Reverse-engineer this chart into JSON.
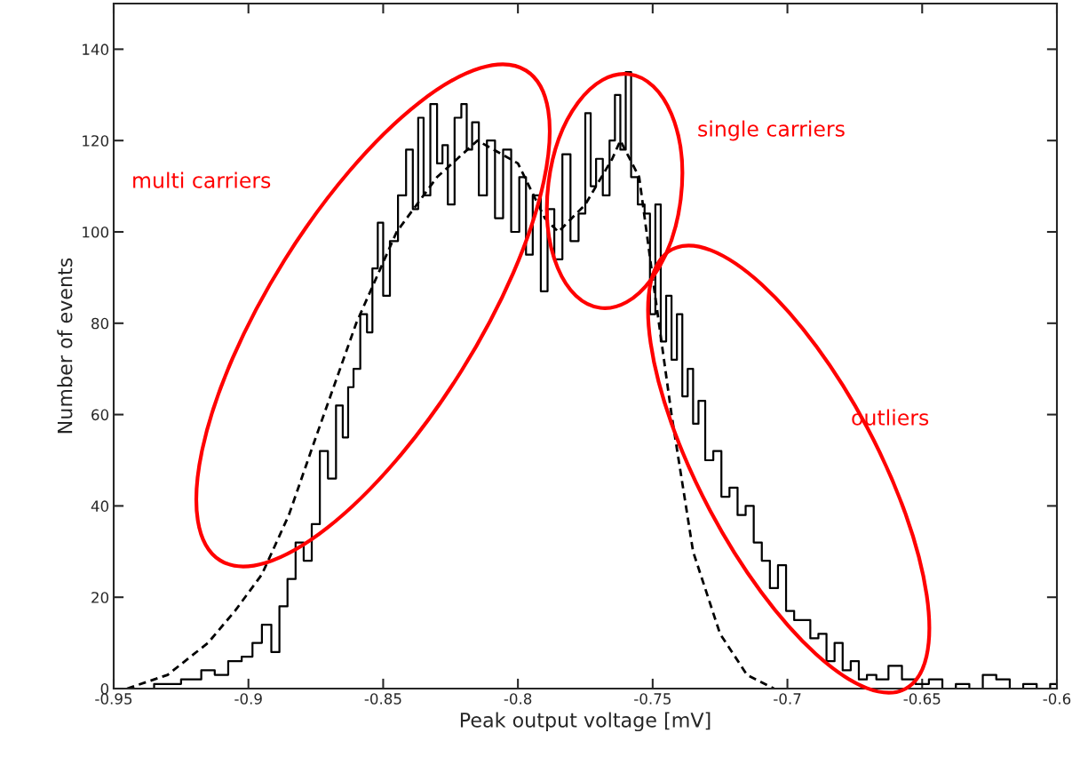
{
  "chart_data": {
    "type": "step",
    "xlabel": "Peak output voltage [mV]",
    "ylabel": "Number of events",
    "xlim": [
      -0.95,
      -0.6
    ],
    "xticks": [
      -0.95,
      -0.9,
      -0.85,
      -0.8,
      -0.75,
      -0.7,
      -0.65,
      -0.6
    ],
    "ylim": [
      0,
      150
    ],
    "yticks": [
      0,
      20,
      40,
      60,
      80,
      100,
      120,
      140
    ],
    "grid": false,
    "legend": false,
    "marker": "none",
    "annotations": [
      "multi carriers",
      "single carriers",
      "outliers"
    ],
    "series": [
      {
        "color": "#000000",
        "line_style": "solid",
        "x": [
          -0.95,
          -0.94,
          -0.93,
          -0.92,
          -0.915,
          -0.91,
          -0.905,
          -0.9,
          -0.897,
          -0.893,
          -0.89,
          -0.887,
          -0.884,
          -0.881,
          -0.878,
          -0.875,
          -0.872,
          -0.869,
          -0.866,
          -0.864,
          -0.862,
          -0.86,
          -0.857,
          -0.855,
          -0.853,
          -0.851,
          -0.849,
          -0.846,
          -0.843,
          -0.84,
          -0.838,
          -0.836,
          -0.834,
          -0.831,
          -0.829,
          -0.827,
          -0.825,
          -0.822,
          -0.82,
          -0.818,
          -0.816,
          -0.813,
          -0.81,
          -0.807,
          -0.804,
          -0.801,
          -0.798,
          -0.796,
          -0.793,
          -0.79,
          -0.788,
          -0.785,
          -0.782,
          -0.779,
          -0.776,
          -0.774,
          -0.772,
          -0.77,
          -0.767,
          -0.765,
          -0.763,
          -0.761,
          -0.759,
          -0.757,
          -0.754,
          -0.752,
          -0.75,
          -0.748,
          -0.746,
          -0.744,
          -0.742,
          -0.74,
          -0.738,
          -0.736,
          -0.734,
          -0.732,
          -0.729,
          -0.726,
          -0.723,
          -0.72,
          -0.717,
          -0.714,
          -0.711,
          -0.708,
          -0.705,
          -0.702,
          -0.699,
          -0.696,
          -0.693,
          -0.69,
          -0.687,
          -0.684,
          -0.681,
          -0.678,
          -0.675,
          -0.672,
          -0.669,
          -0.665,
          -0.66,
          -0.655,
          -0.65,
          -0.645,
          -0.64,
          -0.635,
          -0.63,
          -0.625,
          -0.62,
          -0.615,
          -0.61,
          -0.605,
          -0.6
        ],
        "values": [
          0,
          0,
          1,
          2,
          4,
          3,
          6,
          7,
          10,
          14,
          8,
          18,
          24,
          32,
          28,
          36,
          52,
          46,
          62,
          55,
          66,
          70,
          82,
          78,
          92,
          102,
          86,
          98,
          108,
          118,
          105,
          125,
          108,
          128,
          115,
          119,
          106,
          125,
          128,
          118,
          124,
          108,
          120,
          103,
          118,
          100,
          112,
          95,
          108,
          87,
          105,
          94,
          117,
          98,
          104,
          126,
          110,
          116,
          108,
          120,
          130,
          118,
          135,
          112,
          106,
          104,
          82,
          106,
          76,
          86,
          72,
          82,
          64,
          70,
          58,
          63,
          50,
          52,
          42,
          44,
          38,
          40,
          32,
          28,
          22,
          27,
          17,
          15,
          15,
          11,
          12,
          6,
          10,
          4,
          6,
          2,
          3,
          2,
          5,
          2,
          1,
          2,
          0,
          1,
          0,
          3,
          2,
          0,
          1,
          0,
          1
        ]
      },
      {
        "type": "line",
        "color": "#000000",
        "line_style": "dashed",
        "x": [
          -0.945,
          -0.93,
          -0.915,
          -0.905,
          -0.895,
          -0.885,
          -0.875,
          -0.86,
          -0.845,
          -0.83,
          -0.815,
          -0.8,
          -0.79,
          -0.785,
          -0.775,
          -0.765,
          -0.762,
          -0.755,
          -0.75,
          -0.743,
          -0.735,
          -0.725,
          -0.715,
          -0.705
        ],
        "values": [
          0,
          3,
          10,
          17,
          25,
          38,
          55,
          80,
          100,
          112,
          120,
          115,
          103,
          100,
          106,
          116,
          120,
          112,
          90,
          60,
          30,
          12,
          3,
          0
        ]
      }
    ]
  }
}
